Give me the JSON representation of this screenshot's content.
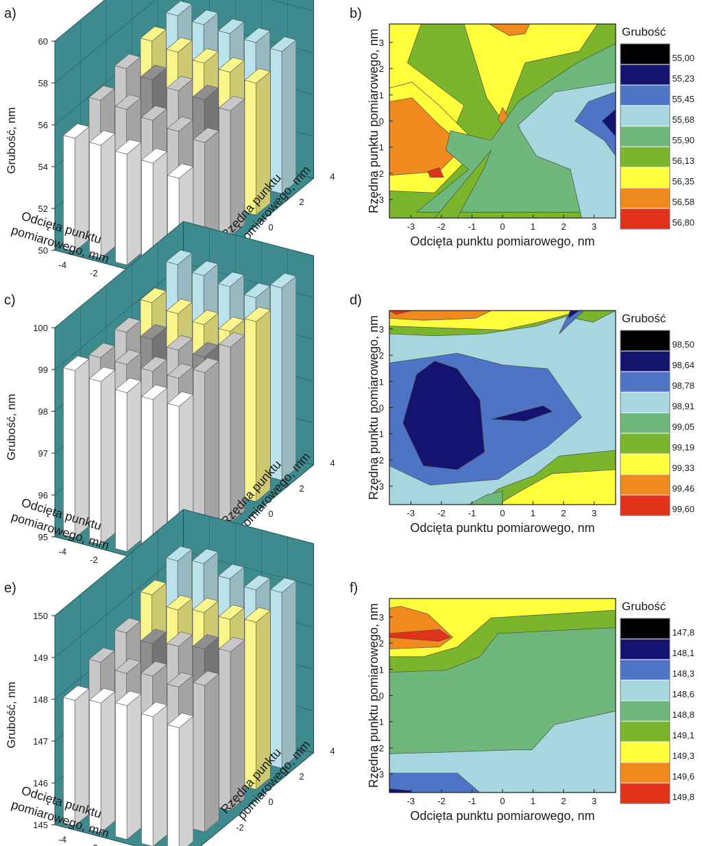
{
  "palette": {
    "teal": "#3d8a8f",
    "contour": [
      "#000000",
      "#141470",
      "#4e74c6",
      "#a8d6df",
      "#6eb87c",
      "#7ab52b",
      "#ffff3c",
      "#f08a1c",
      "#e2331a"
    ],
    "bars": {
      "white": "#ffffff",
      "lightgray": "#c8c8c8",
      "darkgray": "#8f8f8f",
      "yellow": "#faf58a",
      "lightblue": "#b9e2ea"
    }
  },
  "charts": [
    {
      "panel": "a)",
      "type": "bar3d",
      "zlabel": "Grubość, nm",
      "xlabel": [
        "Odcięta punktu",
        "pomiarowego, mm"
      ],
      "ylabel": [
        "Rzędna punktu",
        "pomiarowego, mm"
      ],
      "zticks": [
        "60",
        "58",
        "56",
        "54",
        "52",
        "50"
      ],
      "xticks": [
        "-4",
        "-2",
        "0",
        "2",
        "4"
      ],
      "yticks": [
        "-4",
        "-2",
        "0",
        "2",
        "4"
      ]
    },
    {
      "panel": "b)",
      "type": "contour",
      "legend_title": "Grubość",
      "legend_levels": [
        "55,00",
        "55,23",
        "55,45",
        "55,68",
        "55,90",
        "56,13",
        "56,35",
        "56,58",
        "56,80"
      ],
      "xlabel": "Odcięta punktu pomiarowego, nm",
      "ylabel": "Rzędna punktu pomiarowego, nm",
      "xticks": [
        "-3",
        "-2",
        "-1",
        "0",
        "1",
        "2",
        "3"
      ],
      "yticks": [
        "3",
        "2",
        "1",
        "0",
        "-1",
        "-2",
        "-3"
      ]
    },
    {
      "panel": "c)",
      "type": "bar3d",
      "zlabel": "Grubość, nm",
      "xlabel": [
        "Odcięta punktu",
        "pomiarowego, mm"
      ],
      "ylabel": [
        "Rzędna punktu",
        "pomiarowego, mm"
      ],
      "zticks": [
        "100",
        "99",
        "98",
        "97",
        "96",
        "95"
      ],
      "xticks": [
        "-4",
        "-2",
        "0",
        "2",
        "4"
      ],
      "yticks": [
        "-4",
        "-2",
        "0",
        "2",
        "4"
      ]
    },
    {
      "panel": "d)",
      "type": "contour",
      "legend_title": "Grubość",
      "legend_levels": [
        "98,50",
        "98,64",
        "98,78",
        "98,91",
        "99,05",
        "99,19",
        "99,33",
        "99,46",
        "99,60"
      ],
      "xlabel": "Odcięta punktu pomiarowego, nm",
      "ylabel": "Rzędna punktu pomiarowego, nm",
      "xticks": [
        "-3",
        "-2",
        "-1",
        "0",
        "1",
        "2",
        "3"
      ],
      "yticks": [
        "3",
        "2",
        "1",
        "0",
        "-1",
        "-2",
        "-3"
      ]
    },
    {
      "panel": "e)",
      "type": "bar3d",
      "zlabel": "Grubość, nm",
      "xlabel": [
        "Odcięta punktu",
        "pomiarowego, mm"
      ],
      "ylabel": [
        "Rzędna punktu",
        "pomiarowego, mm"
      ],
      "zticks": [
        "150",
        "149",
        "148",
        "147",
        "146",
        "145"
      ],
      "xticks": [
        "-4",
        "-2",
        "0",
        "2",
        "4"
      ],
      "yticks": [
        "-4",
        "-2",
        "0",
        "2",
        "4"
      ]
    },
    {
      "panel": "f)",
      "type": "contour",
      "legend_title": "Grubość",
      "legend_levels": [
        "147,8",
        "148,1",
        "148,3",
        "148,6",
        "148,8",
        "149,1",
        "149,3",
        "149,6",
        "149,8"
      ],
      "xlabel": "Odcięta punktu pomiarowego, nm",
      "ylabel": "Rzędna punktu pomiarowego, nm",
      "xticks": [
        "-3",
        "-2",
        "-1",
        "0",
        "1",
        "2",
        "3"
      ],
      "yticks": [
        "3",
        "2",
        "1",
        "0",
        "-1",
        "-2",
        "-3"
      ]
    }
  ],
  "chart_data": [
    {
      "type": "bar3d",
      "panel": "a)",
      "zlim": [
        50,
        60
      ],
      "x": [
        -4,
        -2,
        0,
        2,
        4
      ],
      "y": [
        -4,
        -2,
        0,
        2,
        4
      ],
      "values": [
        [
          55.4,
          55.4,
          55.3,
          55.2,
          54.8
        ],
        [
          56.2,
          56.1,
          55.9,
          55.7,
          55.5
        ],
        [
          56.7,
          56.5,
          56.3,
          56.2,
          56.0
        ],
        [
          57.0,
          56.8,
          56.6,
          56.5,
          56.3
        ],
        [
          57.2,
          57.1,
          57.0,
          56.9,
          56.8
        ]
      ]
    },
    {
      "type": "contour",
      "panel": "b)",
      "xlim": [
        -3.8,
        3.8
      ],
      "ylim": [
        -3.8,
        3.8
      ],
      "levels": [
        55.0,
        55.23,
        55.45,
        55.68,
        55.9,
        56.13,
        56.35,
        56.58,
        56.8
      ]
    },
    {
      "type": "bar3d",
      "panel": "c)",
      "zlim": [
        95,
        100
      ],
      "x": [
        -4,
        -2,
        0,
        2,
        4
      ],
      "y": [
        -4,
        -2,
        0,
        2,
        4
      ],
      "values": [
        [
          99.0,
          98.9,
          98.8,
          98.8,
          98.8
        ],
        [
          98.8,
          98.8,
          98.8,
          98.8,
          99.1
        ],
        [
          98.9,
          98.9,
          98.8,
          98.8,
          99.2
        ],
        [
          99.1,
          99.0,
          98.9,
          98.9,
          99.3
        ],
        [
          99.5,
          99.4,
          99.3,
          99.2,
          99.6
        ]
      ]
    },
    {
      "type": "contour",
      "panel": "d)",
      "xlim": [
        -3.8,
        3.8
      ],
      "ylim": [
        -3.8,
        3.8
      ],
      "levels": [
        98.5,
        98.64,
        98.78,
        98.91,
        99.05,
        99.19,
        99.33,
        99.46,
        99.6
      ]
    },
    {
      "type": "bar3d",
      "panel": "e)",
      "zlim": [
        145,
        150
      ],
      "x": [
        -4,
        -2,
        0,
        2,
        4
      ],
      "y": [
        -4,
        -2,
        0,
        2,
        4
      ],
      "values": [
        [
          148.0,
          148.1,
          148.2,
          148.1,
          148.0
        ],
        [
          148.4,
          148.3,
          148.4,
          148.3,
          148.5
        ],
        [
          148.6,
          148.5,
          148.6,
          148.7,
          148.8
        ],
        [
          149.0,
          148.8,
          148.9,
          148.9,
          149.0
        ],
        [
          149.3,
          149.4,
          149.2,
          149.1,
          149.2
        ]
      ]
    },
    {
      "type": "contour",
      "panel": "f)",
      "xlim": [
        -3.3,
        3.3
      ],
      "ylim": [
        -3.3,
        3.3
      ],
      "levels": [
        147.8,
        148.1,
        148.3,
        148.6,
        148.8,
        149.1,
        149.3,
        149.6,
        149.8
      ]
    }
  ]
}
